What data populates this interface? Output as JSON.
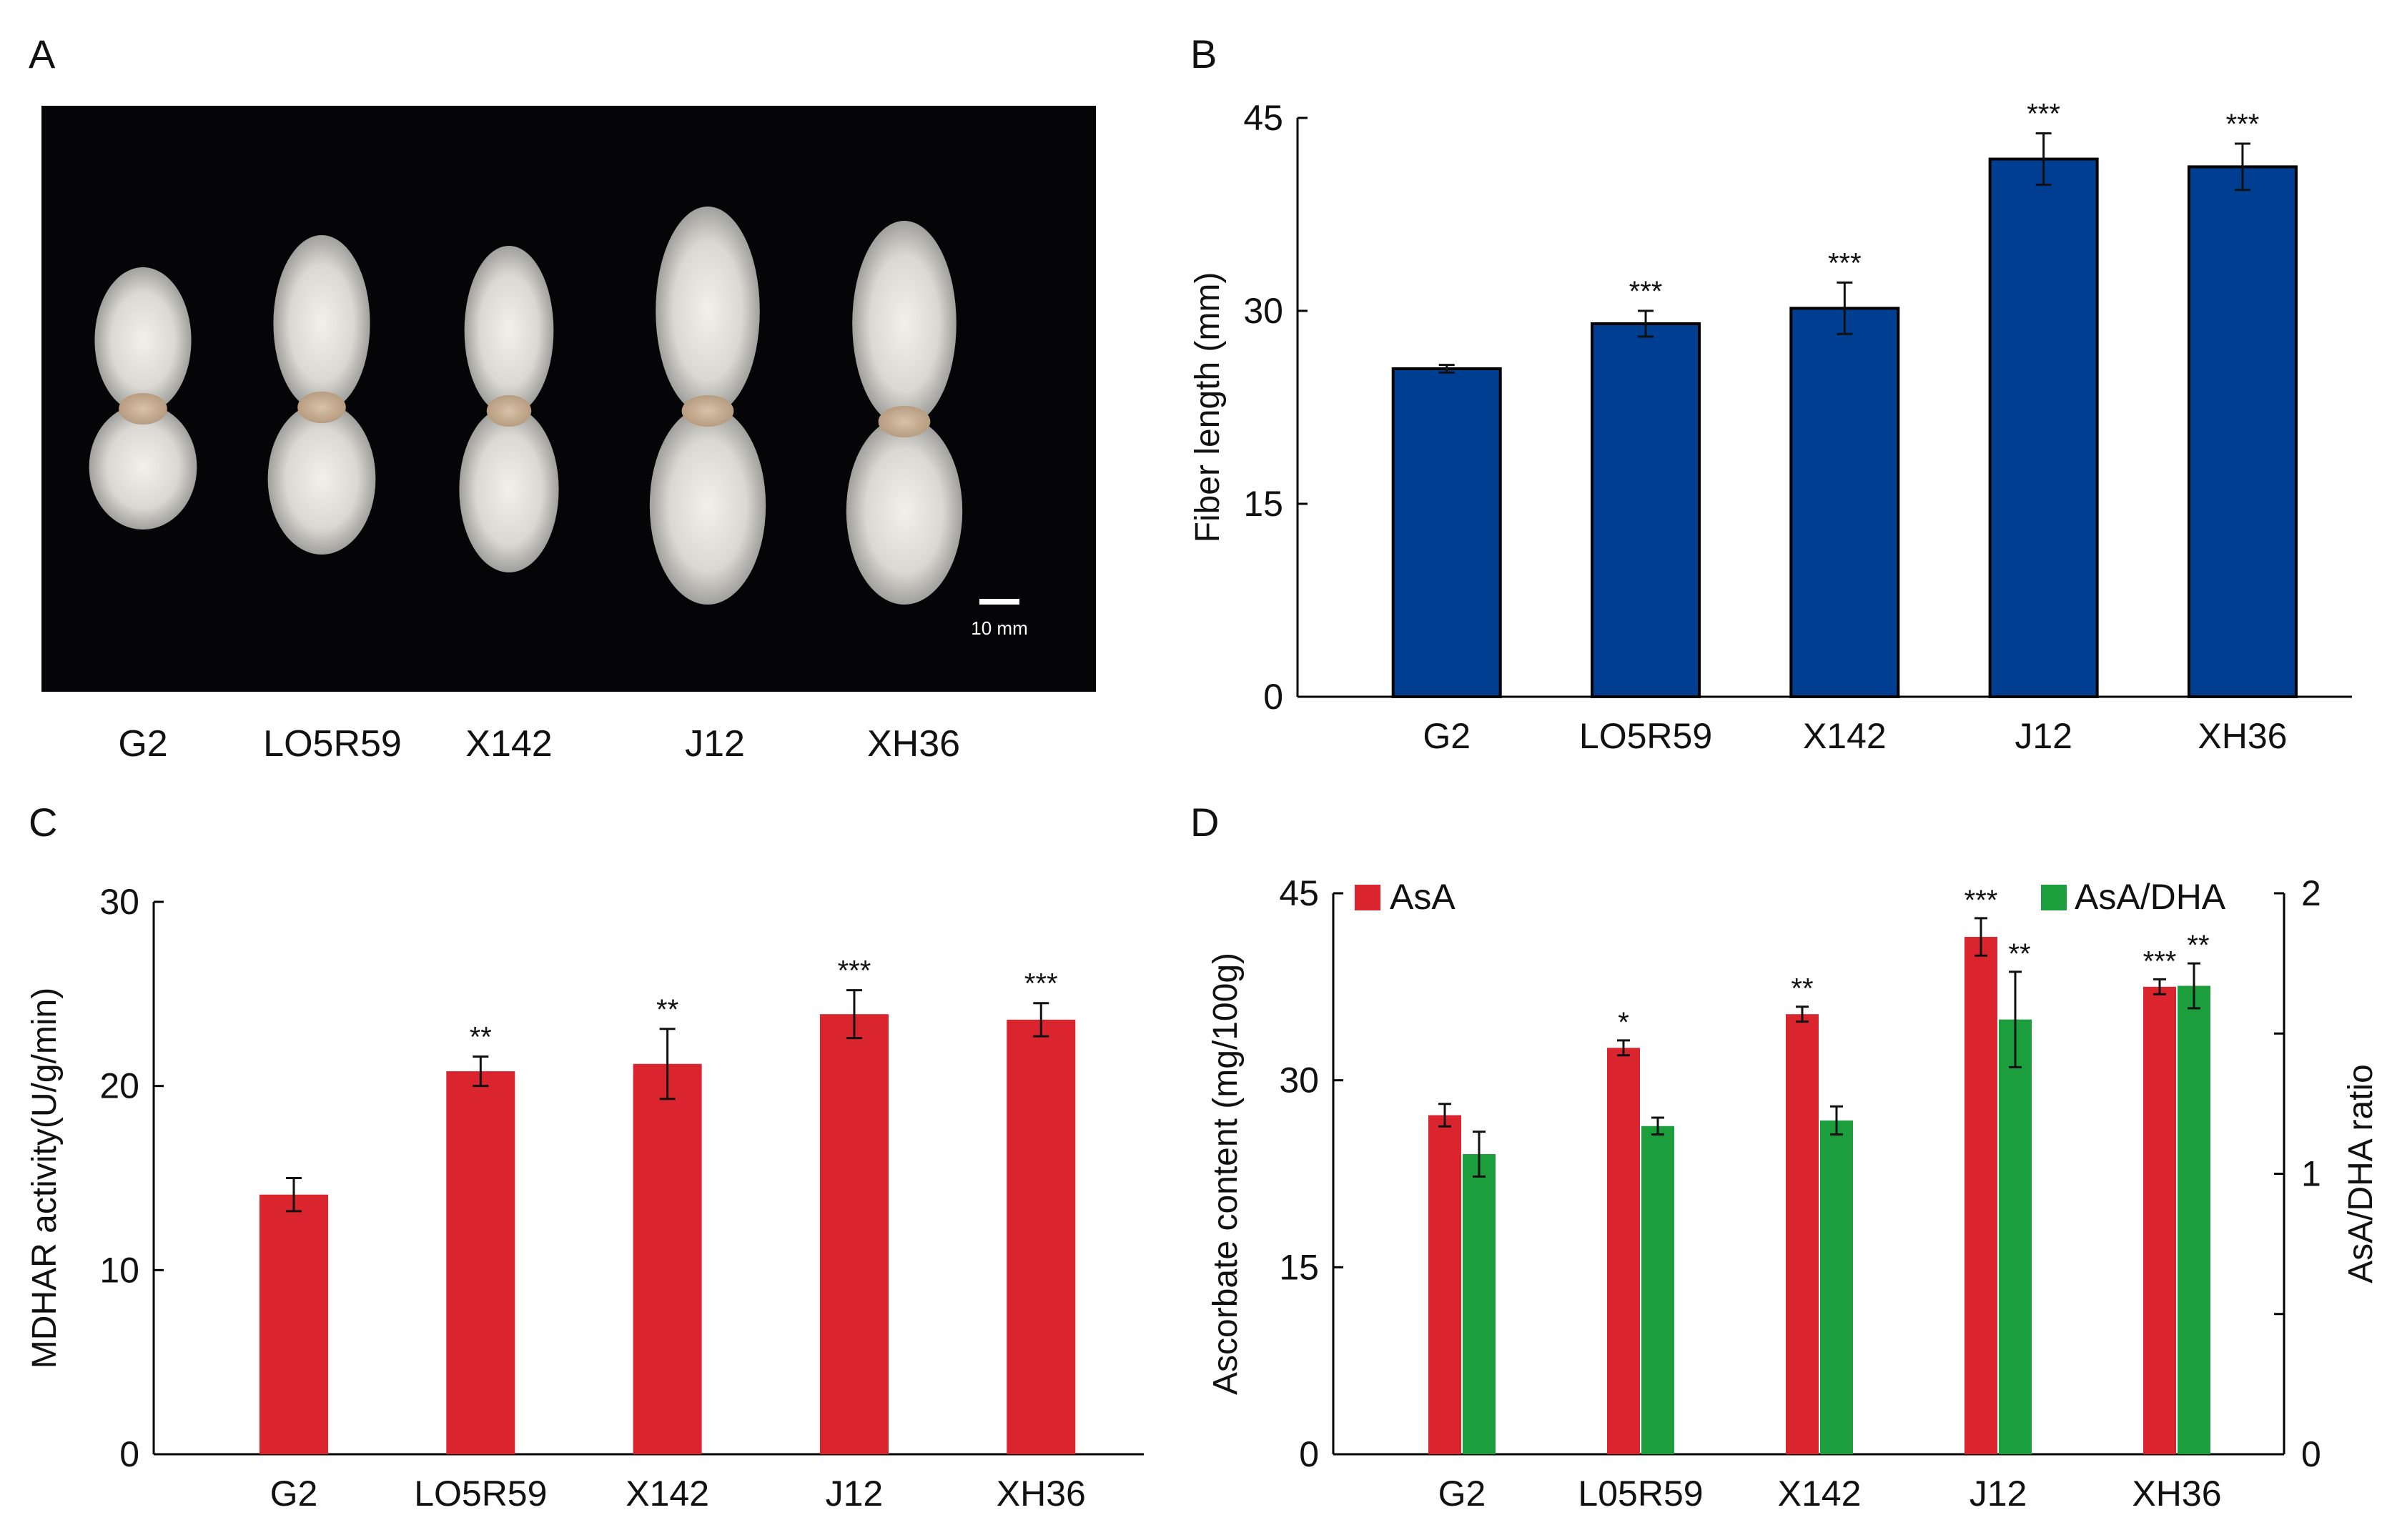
{
  "panels": {
    "A": {
      "letter": "A",
      "scale_bar_label": "10 mm",
      "labels": [
        "G2",
        "LO5R59",
        "X142",
        "J12",
        "XH36"
      ]
    },
    "B": {
      "letter": "B",
      "chart_data": {
        "type": "bar",
        "categories": [
          "G2",
          "LO5R59",
          "X142",
          "J12",
          "XH36"
        ],
        "values": [
          25.5,
          29.0,
          30.2,
          41.8,
          41.2
        ],
        "errors": [
          0.3,
          1.0,
          2.0,
          2.0,
          1.8
        ],
        "significance": [
          "",
          "***",
          "***",
          "***",
          "***"
        ],
        "ylabel": "Fiber length (mm)",
        "ylim": [
          0,
          45
        ],
        "yticks": [
          0,
          15,
          30,
          45
        ],
        "color": "#003e92"
      }
    },
    "C": {
      "letter": "C",
      "chart_data": {
        "type": "bar",
        "categories": [
          "G2",
          "LO5R59",
          "X142",
          "J12",
          "XH36"
        ],
        "values": [
          14.1,
          20.8,
          21.2,
          23.9,
          23.6
        ],
        "errors": [
          0.9,
          0.8,
          1.9,
          1.3,
          0.9
        ],
        "significance": [
          "",
          "**",
          "**",
          "***",
          "***"
        ],
        "ylabel": "MDHAR activity(U/g/min)",
        "ylim": [
          0,
          30
        ],
        "yticks": [
          0,
          10,
          20,
          30
        ],
        "color": "#db252e"
      }
    },
    "D": {
      "letter": "D",
      "chart_data": {
        "type": "bar",
        "categories": [
          "G2",
          "L05R59",
          "X142",
          "J12",
          "XH36"
        ],
        "series": [
          {
            "name": "AsA",
            "axis": "left",
            "values": [
              27.2,
              32.6,
              35.3,
              41.5,
              37.5
            ],
            "errors": [
              0.9,
              0.6,
              0.6,
              1.5,
              0.6
            ],
            "significance": [
              "",
              "*",
              "**",
              "***",
              "***"
            ],
            "color": "#db252e"
          },
          {
            "name": "AsA/DHA",
            "axis": "right",
            "values": [
              1.07,
              1.17,
              1.19,
              1.55,
              1.67
            ],
            "errors": [
              0.08,
              0.03,
              0.05,
              0.17,
              0.08
            ],
            "significance": [
              "",
              "",
              "",
              "**",
              "**"
            ],
            "color": "#1c9e3d"
          }
        ],
        "ylabel": "Ascorbate content (mg/100g)",
        "ylabel_right": "AsA/DHA ratio",
        "ylim": [
          0,
          45
        ],
        "yticks": [
          0,
          15,
          30,
          45
        ],
        "ylim_right": [
          0,
          2
        ],
        "yticks_right": [
          0,
          1,
          2
        ],
        "legend": "top"
      }
    }
  }
}
